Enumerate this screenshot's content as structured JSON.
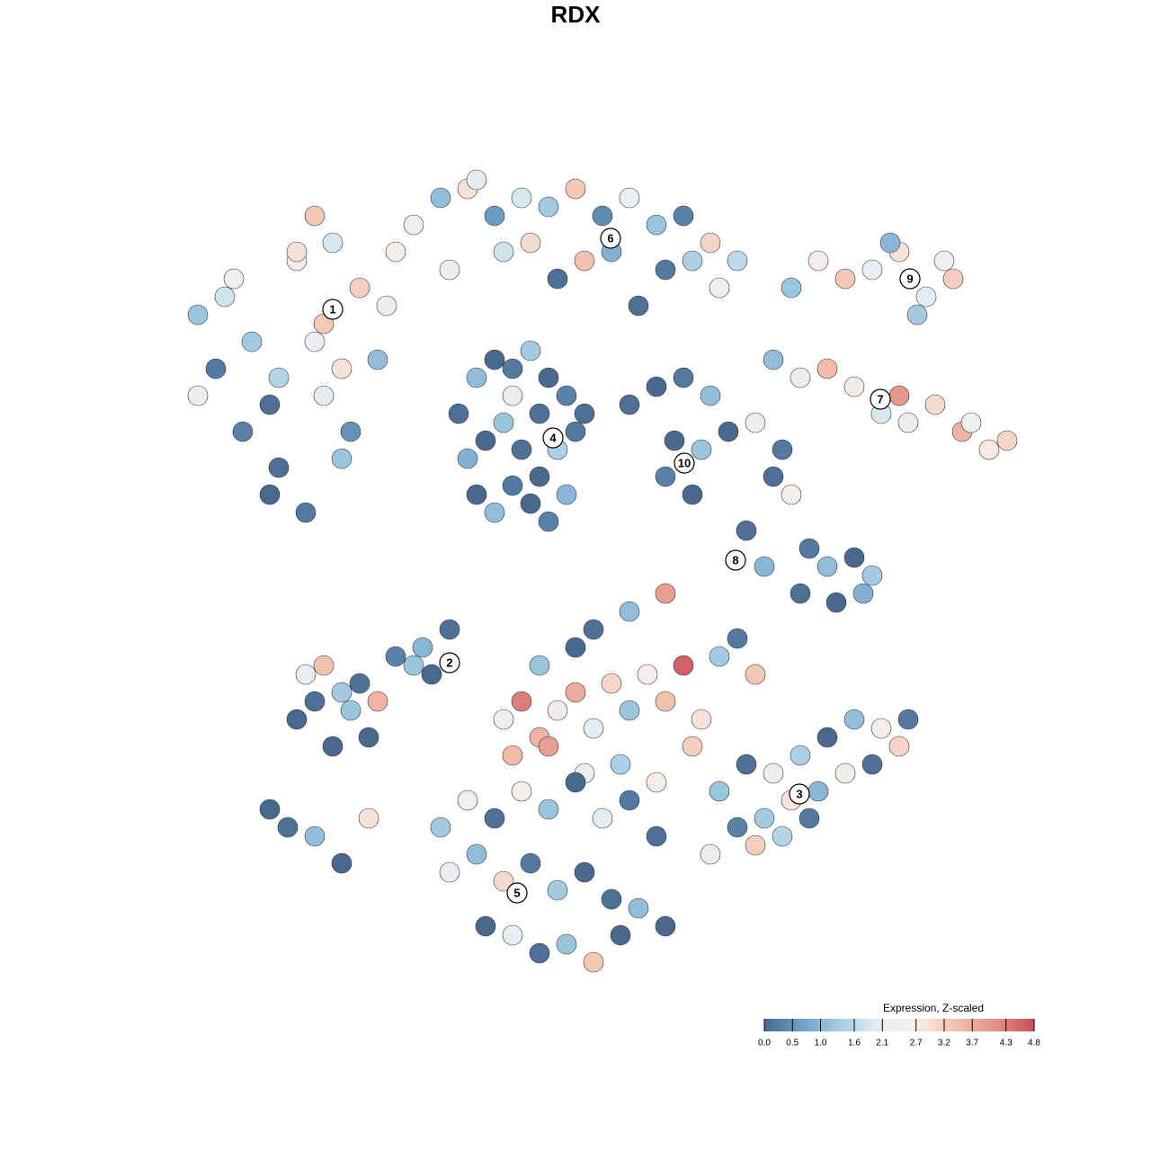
{
  "chart_data": {
    "type": "scatter",
    "title": "RDX",
    "xlim": [
      0,
      128
    ],
    "ylim": [
      128,
      0
    ],
    "series": [
      {
        "x": [
          22,
          24,
          26,
          28,
          30,
          33,
          35,
          37,
          40,
          42,
          44,
          27,
          31,
          36,
          39,
          43,
          30,
          34,
          38,
          33,
          36,
          31,
          22,
          25,
          35,
          38
        ],
        "y": [
          35,
          41,
          31,
          38,
          45,
          29,
          38,
          27,
          32,
          40,
          28,
          48,
          52,
          44,
          48,
          34,
          55,
          57,
          51,
          28,
          36,
          42,
          44,
          33,
          24,
          41
        ],
        "values": [
          1.2,
          0.2,
          2.4,
          1.3,
          0.1,
          2.6,
          2.2,
          1.9,
          3.2,
          1.1,
          2.7,
          0.3,
          0.1,
          2.0,
          0.5,
          2.3,
          0.0,
          0.2,
          1.2,
          2.9,
          3.3,
          1.5,
          2.3,
          1.8,
          3.3,
          2.9
        ]
      },
      {
        "x": [
          46,
          49,
          52,
          55,
          58,
          61,
          64,
          67,
          70,
          73,
          76,
          79,
          82,
          50,
          56,
          62,
          68,
          74,
          80,
          53,
          59,
          65,
          71,
          77
        ],
        "y": [
          25,
          22,
          21,
          24,
          22,
          23,
          21,
          24,
          22,
          25,
          24,
          27,
          29,
          30,
          28,
          31,
          28,
          30,
          32,
          20,
          27,
          29,
          34,
          29
        ],
        "values": [
          2.4,
          1.1,
          2.9,
          0.6,
          1.9,
          1.3,
          3.3,
          0.4,
          2.1,
          1.2,
          0.3,
          3.1,
          1.6,
          2.5,
          1.8,
          0.1,
          0.9,
          0.2,
          2.6,
          2.0,
          3.0,
          3.4,
          0.1,
          1.4
        ]
      },
      {
        "x": [
          51,
          53,
          55,
          57,
          59,
          61,
          63,
          65,
          52,
          54,
          56,
          58,
          60,
          62,
          64,
          53,
          55,
          57,
          59,
          61,
          63,
          57,
          60
        ],
        "y": [
          46,
          42,
          40,
          41,
          39,
          42,
          44,
          46,
          51,
          49,
          47,
          50,
          53,
          50,
          48,
          55,
          57,
          54,
          56,
          58,
          55,
          44,
          46
        ],
        "values": [
          0.1,
          1.1,
          0.0,
          0.2,
          1.3,
          0.0,
          0.3,
          0.1,
          0.9,
          0.0,
          1.2,
          0.1,
          0.0,
          1.4,
          0.2,
          0.0,
          1.1,
          0.2,
          0.0,
          0.3,
          1.0,
          2.2,
          0.1
        ]
      },
      {
        "x": [
          70,
          73,
          76,
          79,
          75,
          78,
          74,
          77,
          81,
          84,
          86,
          88,
          90,
          92,
          95,
          97,
          89,
          93,
          96,
          83,
          85,
          87
        ],
        "y": [
          45,
          43,
          42,
          44,
          49,
          50,
          53,
          55,
          48,
          47,
          53,
          55,
          61,
          63,
          62,
          64,
          66,
          67,
          66,
          59,
          63,
          50
        ],
        "values": [
          0.1,
          0.0,
          0.2,
          1.1,
          0.0,
          1.2,
          0.3,
          0.0,
          0.0,
          2.3,
          0.1,
          2.6,
          0.2,
          1.1,
          0.0,
          1.3,
          0.1,
          0.0,
          0.9,
          0.1,
          1.0,
          0.2
        ]
      },
      {
        "x": [
          88,
          91,
          94,
          97,
          100,
          103,
          106,
          99,
          102,
          105,
          86,
          89,
          92,
          95,
          98,
          101,
          104,
          107,
          110,
          112,
          100,
          108
        ],
        "y": [
          32,
          29,
          31,
          30,
          28,
          33,
          31,
          27,
          35,
          29,
          40,
          42,
          41,
          43,
          46,
          47,
          45,
          48,
          50,
          49,
          44,
          47
        ],
        "values": [
          1.2,
          2.6,
          3.3,
          2.1,
          2.9,
          2.0,
          3.2,
          1.0,
          1.3,
          2.4,
          1.1,
          2.2,
          3.5,
          2.5,
          1.9,
          2.3,
          3.0,
          3.6,
          2.8,
          3.1,
          4.0,
          2.4
        ]
      },
      {
        "x": [
          33,
          35,
          37,
          39,
          41,
          44,
          47,
          50,
          34,
          36,
          38,
          40,
          42,
          30,
          32,
          35,
          38,
          41,
          46,
          48
        ],
        "y": [
          80,
          78,
          83,
          79,
          82,
          73,
          72,
          70,
          75,
          74,
          77,
          76,
          78,
          90,
          92,
          93,
          96,
          91,
          74,
          75
        ],
        "values": [
          0.0,
          0.1,
          0.0,
          1.2,
          0.0,
          0.3,
          1.0,
          0.1,
          2.1,
          3.4,
          1.3,
          0.1,
          3.6,
          0.0,
          0.1,
          1.1,
          0.0,
          2.9,
          1.2,
          0.0
        ]
      },
      {
        "x": [
          56,
          58,
          60,
          62,
          64,
          66,
          68,
          70,
          72,
          74,
          76,
          78,
          80,
          57,
          61,
          65,
          69,
          73,
          77,
          66,
          70,
          74,
          82,
          84,
          60,
          64
        ],
        "y": [
          80,
          78,
          82,
          79,
          77,
          81,
          76,
          79,
          75,
          78,
          74,
          80,
          73,
          84,
          83,
          86,
          85,
          87,
          83,
          70,
          68,
          66,
          71,
          75,
          74,
          72
        ],
        "values": [
          2.3,
          4.3,
          3.6,
          2.5,
          3.7,
          2.0,
          3.1,
          1.2,
          2.6,
          3.4,
          4.6,
          2.9,
          1.3,
          3.5,
          3.9,
          2.3,
          1.4,
          2.7,
          3.2,
          0.1,
          1.1,
          3.9,
          0.2,
          3.3,
          1.2,
          0.0
        ]
      },
      {
        "x": [
          80,
          83,
          86,
          89,
          92,
          95,
          98,
          101,
          82,
          85,
          88,
          91,
          94,
          97,
          79,
          84,
          87,
          90,
          100
        ],
        "y": [
          88,
          85,
          86,
          84,
          82,
          80,
          81,
          80,
          92,
          91,
          89,
          88,
          86,
          85,
          95,
          94,
          93,
          91,
          83
        ],
        "values": [
          1.2,
          0.1,
          2.3,
          1.4,
          0.0,
          1.1,
          2.6,
          0.2,
          0.3,
          1.3,
          2.9,
          1.0,
          2.5,
          0.1,
          2.3,
          3.2,
          1.5,
          0.2,
          3.1
        ]
      },
      {
        "x": [
          49,
          52,
          55,
          58,
          61,
          64,
          67,
          70,
          73,
          50,
          53,
          56,
          59,
          62,
          65,
          68,
          71,
          74,
          54,
          57,
          60,
          63,
          66,
          69
        ],
        "y": [
          92,
          89,
          91,
          88,
          90,
          87,
          91,
          89,
          93,
          97,
          95,
          98,
          96,
          99,
          97,
          100,
          101,
          103,
          103,
          104,
          106,
          105,
          107,
          104
        ],
        "values": [
          1.3,
          2.4,
          0.1,
          2.6,
          1.2,
          0.0,
          2.0,
          0.2,
          0.1,
          2.2,
          1.1,
          3.0,
          0.2,
          1.3,
          0.0,
          0.1,
          1.1,
          0.0,
          0.0,
          2.1,
          0.1,
          1.2,
          3.3,
          0.0
        ]
      }
    ],
    "clusters": [
      {
        "label": "1",
        "x": 37.0,
        "y": 34.4
      },
      {
        "label": "6",
        "x": 67.9,
        "y": 26.5
      },
      {
        "label": "9",
        "x": 101.2,
        "y": 31.0
      },
      {
        "label": "7",
        "x": 97.9,
        "y": 44.4
      },
      {
        "label": "4",
        "x": 61.5,
        "y": 48.7
      },
      {
        "label": "10",
        "x": 76.1,
        "y": 51.5
      },
      {
        "label": "8",
        "x": 81.8,
        "y": 62.3
      },
      {
        "label": "2",
        "x": 50.0,
        "y": 73.7
      },
      {
        "label": "3",
        "x": 88.9,
        "y": 88.3
      },
      {
        "label": "5",
        "x": 57.5,
        "y": 99.3
      }
    ],
    "colorbar": {
      "title": "Expression, Z-scaled",
      "ticks": [
        {
          "value": 0,
          "label": "0.0"
        },
        0.5,
        {
          "value": 1,
          "label": "1.0"
        },
        1.6,
        2.1,
        2.7,
        3.2,
        3.7,
        4.3,
        4.8
      ],
      "colors": [
        "#48688e",
        "#6fa2cb",
        "#a9cfe3",
        "#e6eff5",
        "#f9ece6",
        "#f2c0ac",
        "#e48f86",
        "#c8505b"
      ]
    }
  }
}
